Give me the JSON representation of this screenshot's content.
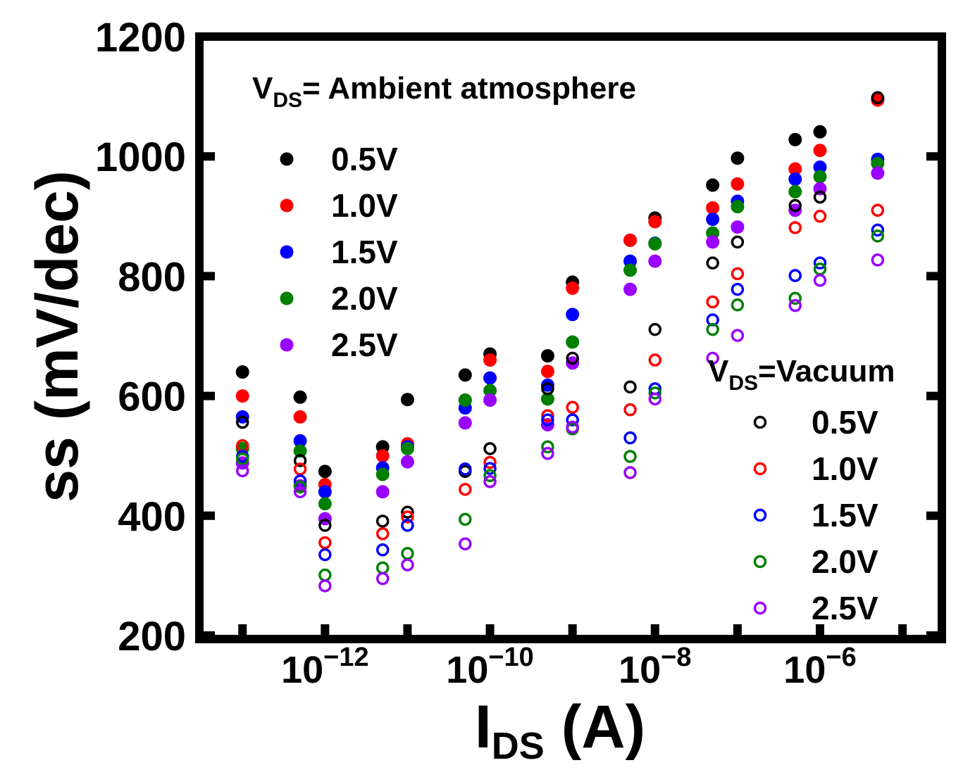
{
  "chart_data": {
    "type": "scatter",
    "xlabel_main": "I",
    "xlabel_sub": "DS",
    "xlabel_tail": " (A)",
    "ylabel": "ss (mV/dec)",
    "x_scale": "log",
    "xlim": [
      3e-14,
      3e-05
    ],
    "ylim": [
      200,
      1200
    ],
    "yticks": [
      200,
      400,
      600,
      800,
      1000,
      1200
    ],
    "ytick_labels": [
      "200",
      "400",
      "600",
      "800",
      "1000",
      "1200"
    ],
    "xticks": [
      1e-12,
      1e-10,
      1e-08,
      1e-06
    ],
    "xtick_labels": [
      {
        "base": "10",
        "exp": "−12"
      },
      {
        "base": "10",
        "exp": "−10"
      },
      {
        "base": "10",
        "exp": "−8"
      },
      {
        "base": "10",
        "exp": "−6"
      }
    ],
    "legend_ambient": {
      "title_main": "V",
      "title_sub": "DS",
      "title_tail": "=  Ambient atmosphere",
      "position": "top-left",
      "entries": [
        "0.5V",
        "1.0V",
        "1.5V",
        "2.0V",
        "2.5V"
      ]
    },
    "legend_vacuum": {
      "title_main": "V",
      "title_sub": "DS",
      "title_tail": "=Vacuum",
      "position": "bottom-right",
      "entries": [
        "0.5V",
        "1.0V",
        "1.5V",
        "2.0V",
        "2.5V"
      ]
    },
    "x": [
      1e-13,
      5e-13,
      1e-12,
      5e-12,
      1e-11,
      5e-11,
      1e-10,
      5e-10,
      1e-09,
      5e-09,
      1e-08,
      5e-08,
      1e-07,
      5e-07,
      1e-06,
      5e-06
    ],
    "series": [
      {
        "name": "Ambient 0.5V",
        "group": "ambient",
        "color": "#000000",
        "filled": true,
        "values": [
          640,
          598,
          474,
          515,
          594,
          635,
          670,
          667,
          790,
          860,
          897,
          952,
          997,
          1028,
          1041,
          1097
        ]
      },
      {
        "name": "Ambient 1.0V",
        "group": "ambient",
        "color": "#ff0000",
        "filled": true,
        "values": [
          600,
          565,
          452,
          500,
          520,
          593,
          660,
          641,
          780,
          860,
          891,
          914,
          954,
          979,
          1010,
          1094
        ]
      },
      {
        "name": "Ambient 1.5V",
        "group": "ambient",
        "color": "#0000ff",
        "filled": true,
        "values": [
          565,
          525,
          440,
          480,
          515,
          580,
          630,
          618,
          736,
          825,
          855,
          895,
          925,
          962,
          982,
          995
        ]
      },
      {
        "name": "Ambient 2.0V",
        "group": "ambient",
        "color": "#008000",
        "filled": true,
        "values": [
          512,
          508,
          420,
          469,
          512,
          593,
          609,
          595,
          690,
          810,
          854,
          872,
          916,
          941,
          966,
          988
        ]
      },
      {
        "name": "Ambient 2.5V",
        "group": "ambient",
        "color": "#9900ff",
        "filled": true,
        "values": [
          488,
          450,
          395,
          440,
          490,
          555,
          593,
          552,
          655,
          778,
          825,
          857,
          882,
          910,
          946,
          972
        ]
      },
      {
        "name": "Vacuum 0.5V",
        "group": "vacuum",
        "color": "#000000",
        "filled": false,
        "values": [
          556,
          492,
          384,
          391,
          406,
          474,
          512,
          612,
          663,
          615,
          711,
          822,
          857,
          918,
          932,
          1098
        ]
      },
      {
        "name": "Vacuum 1.0V",
        "group": "vacuum",
        "color": "#ff0000",
        "filled": false,
        "values": [
          517,
          478,
          355,
          370,
          398,
          444,
          489,
          567,
          581,
          577,
          660,
          757,
          804,
          881,
          900,
          910
        ]
      },
      {
        "name": "Vacuum 1.5V",
        "group": "vacuum",
        "color": "#0000ff",
        "filled": false,
        "values": [
          499,
          458,
          335,
          343,
          384,
          478,
          479,
          560,
          560,
          530,
          612,
          727,
          778,
          801,
          822,
          877
        ]
      },
      {
        "name": "Vacuum 2.0V",
        "group": "vacuum",
        "color": "#008000",
        "filled": false,
        "values": [
          495,
          448,
          301,
          313,
          337,
          394,
          467,
          515,
          545,
          499,
          605,
          711,
          752,
          763,
          812,
          867
        ]
      },
      {
        "name": "Vacuum 2.5V",
        "group": "vacuum",
        "color": "#9900ff",
        "filled": false,
        "values": [
          475,
          440,
          283,
          295,
          318,
          353,
          457,
          504,
          548,
          472,
          595,
          663,
          701,
          751,
          793,
          827
        ]
      }
    ]
  }
}
